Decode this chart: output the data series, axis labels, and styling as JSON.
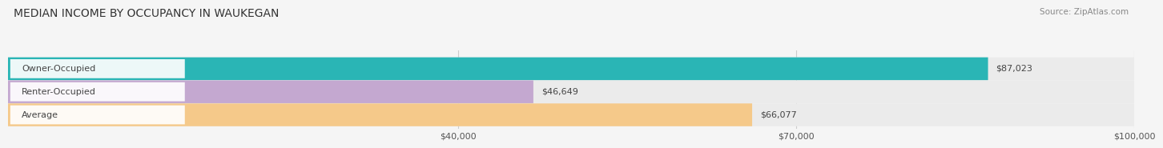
{
  "title": "MEDIAN INCOME BY OCCUPANCY IN WAUKEGAN",
  "source": "Source: ZipAtlas.com",
  "categories": [
    "Owner-Occupied",
    "Renter-Occupied",
    "Average"
  ],
  "values": [
    87023,
    46649,
    66077
  ],
  "labels": [
    "$87,023",
    "$46,649",
    "$66,077"
  ],
  "bar_colors": [
    "#2ab5b5",
    "#c4a8d0",
    "#f5c98a"
  ],
  "bar_bg_colors": [
    "#ebebeb",
    "#ebebeb",
    "#ebebeb"
  ],
  "xlim": [
    0,
    100000
  ],
  "xticks": [
    40000,
    70000,
    100000
  ],
  "xticklabels": [
    "$40,000",
    "$70,000",
    "$100,000"
  ],
  "title_fontsize": 10,
  "source_fontsize": 7.5,
  "label_fontsize": 8,
  "tick_fontsize": 8,
  "background_color": "#f5f5f5"
}
